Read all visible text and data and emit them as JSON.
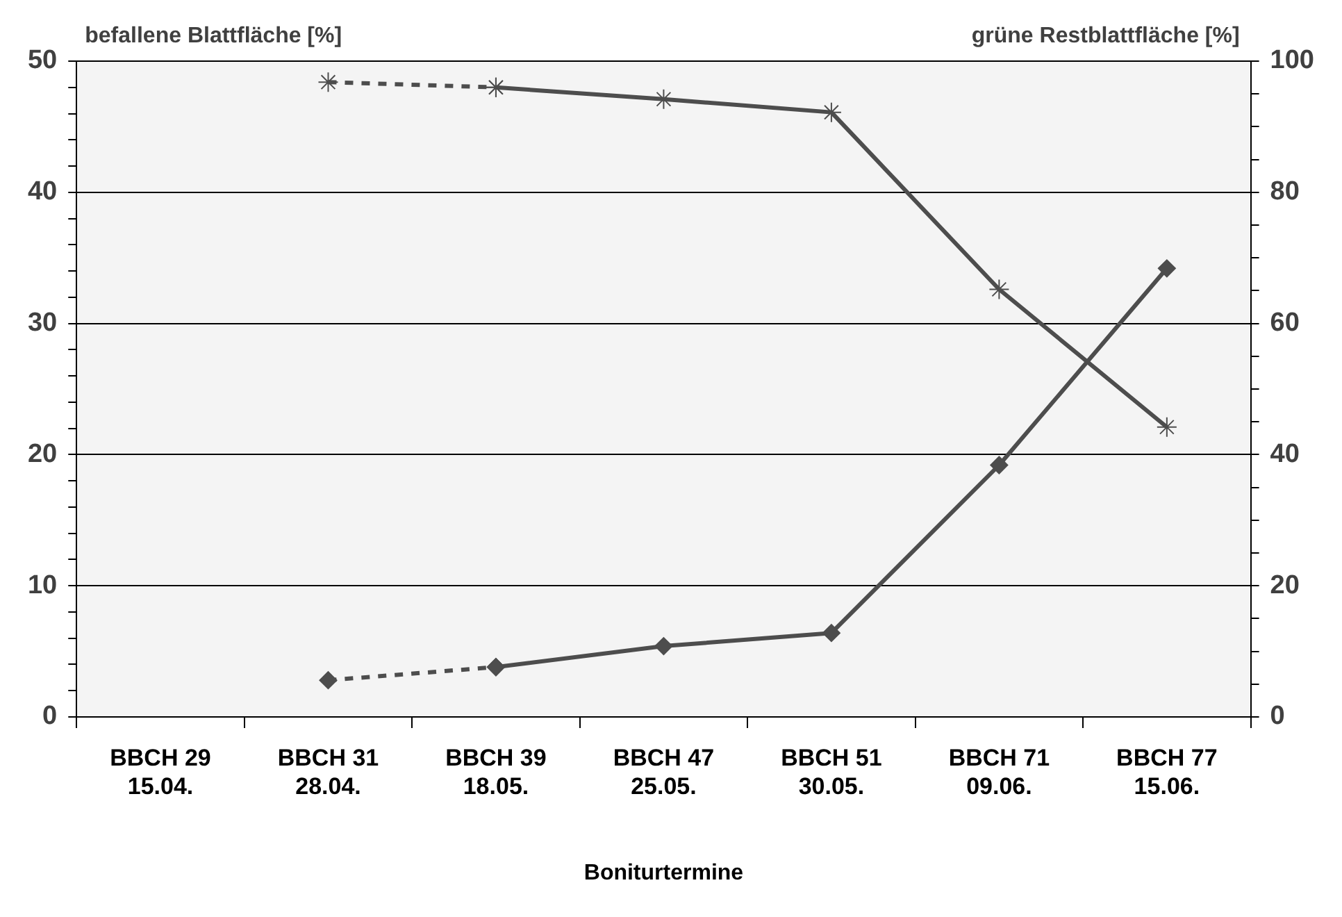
{
  "chart_data": {
    "type": "line",
    "xlabel": "Boniturtermine",
    "ylabel": "befallene Blattfläche [%]",
    "y2label": "grüne Restblattfläche [%]",
    "categories": [
      "BBCH 29\n15.04.",
      "BBCH 31\n28.04.",
      "BBCH 39\n18.05.",
      "BBCH 47\n25.05.",
      "BBCH 51\n30.05.",
      "BBCH 71\n09.06.",
      "BBCH 77\n15.06."
    ],
    "series": [
      {
        "color": "#4d4d4d",
        "axis": "y",
        "marker": "diamond",
        "line_style": "dashed",
        "values": [
          null,
          2.8,
          3.8,
          null,
          null,
          null,
          null
        ]
      },
      {
        "color": "#4d4d4d",
        "axis": "y",
        "marker": "diamond",
        "line_style": "solid",
        "values": [
          null,
          null,
          3.8,
          5.4,
          6.4,
          19.2,
          34.2
        ]
      },
      {
        "color": "#4d4d4d",
        "axis": "y2",
        "marker": "cross",
        "line_style": "dashed",
        "values": [
          null,
          96.8,
          96.0,
          null,
          null,
          null,
          null
        ]
      },
      {
        "color": "#4d4d4d",
        "axis": "y2",
        "marker": "cross",
        "line_style": "solid",
        "values": [
          null,
          null,
          96.0,
          94.2,
          92.2,
          65.2,
          44.2
        ]
      }
    ],
    "ylim": [
      0,
      50
    ],
    "yticks": [
      0,
      {
        "value": 2,
        "label": null
      },
      {
        "value": 4,
        "label": null
      },
      {
        "value": 6,
        "label": null
      },
      {
        "value": 8,
        "label": null
      },
      10,
      {
        "value": 12,
        "label": null
      },
      {
        "value": 14,
        "label": null
      },
      {
        "value": 16,
        "label": null
      },
      {
        "value": 18,
        "label": null
      },
      20,
      {
        "value": 22,
        "label": null
      },
      {
        "value": 24,
        "label": null
      },
      {
        "value": 26,
        "label": null
      },
      {
        "value": 28,
        "label": null
      },
      30,
      {
        "value": 32,
        "label": null
      },
      {
        "value": 34,
        "label": null
      },
      {
        "value": 36,
        "label": null
      },
      {
        "value": 38,
        "label": null
      },
      40,
      {
        "value": 42,
        "label": null
      },
      {
        "value": 44,
        "label": null
      },
      {
        "value": 46,
        "label": null
      },
      {
        "value": 48,
        "label": null
      },
      50
    ],
    "y2lim": [
      0,
      100
    ],
    "y2ticks": [
      0,
      {
        "value": 5,
        "label": null
      },
      {
        "value": 10,
        "label": null
      },
      {
        "value": 15,
        "label": null
      },
      20,
      {
        "value": 25,
        "label": null
      },
      {
        "value": 30,
        "label": null
      },
      {
        "value": 35,
        "label": null
      },
      40,
      {
        "value": 45,
        "label": null
      },
      {
        "value": 50,
        "label": null
      },
      {
        "value": 55,
        "label": null
      },
      60,
      {
        "value": 65,
        "label": null
      },
      {
        "value": 70,
        "label": null
      },
      {
        "value": 75,
        "label": null
      },
      80,
      {
        "value": 85,
        "label": null
      },
      {
        "value": 90,
        "label": null
      },
      {
        "value": 95,
        "label": null
      },
      100
    ],
    "grid": "y",
    "legend": false
  }
}
